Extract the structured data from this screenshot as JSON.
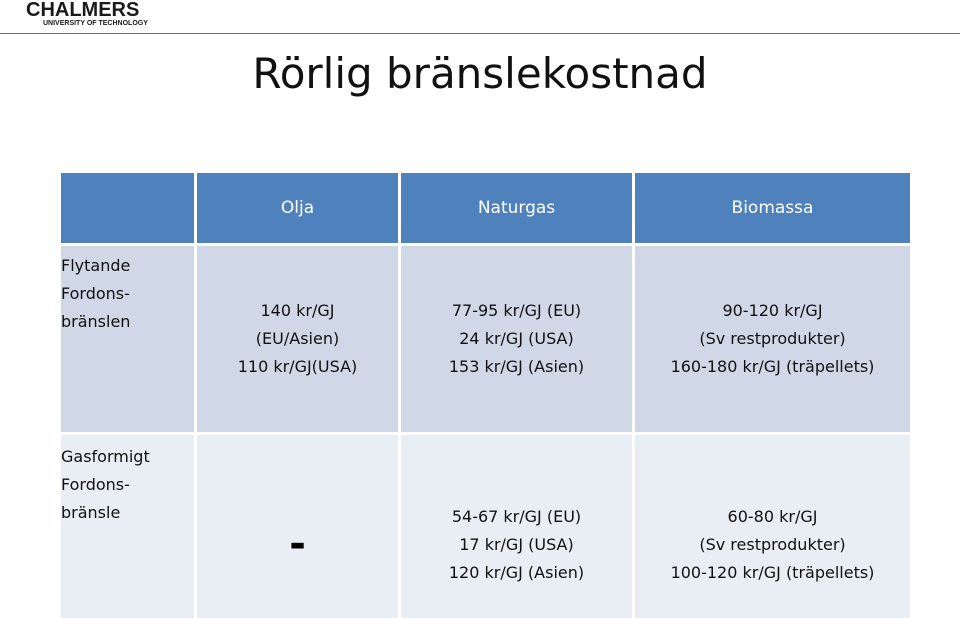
{
  "logo": {
    "name": "CHALMERS",
    "subtitle": "UNIVERSITY OF TECHNOLOGY"
  },
  "title": "Rörlig bränslekostnad",
  "table": {
    "corner": "",
    "columns": [
      "Olja",
      "Naturgas",
      "Biomassa"
    ],
    "rows": [
      {
        "label": [
          "Flytande",
          "Fordons-",
          "bränslen"
        ],
        "cells": [
          [
            "140 kr/GJ",
            "(EU/Asien)",
            "110 kr/GJ(USA)"
          ],
          [
            "77-95 kr/GJ (EU)",
            "24 kr/GJ (USA)",
            "153 kr/GJ (Asien)"
          ],
          [
            "90-120 kr/GJ",
            "(Sv restprodukter)",
            "160-180 kr/GJ (träpellets)"
          ]
        ]
      },
      {
        "label": [
          "Gasformigt",
          "Fordons-",
          "bränsle"
        ],
        "cells": [
          [
            "-"
          ],
          [
            "54-67 kr/GJ (EU)",
            "17 kr/GJ (USA)",
            "120  kr/GJ (Asien)"
          ],
          [
            "60-80 kr/GJ",
            "(Sv restprodukter)",
            "100-120 kr/GJ (träpellets)"
          ]
        ]
      }
    ]
  },
  "colors": {
    "header_bg": "#4f81bd",
    "row1_bg": "#d0d8e8",
    "row2_bg": "#e9edf4"
  }
}
